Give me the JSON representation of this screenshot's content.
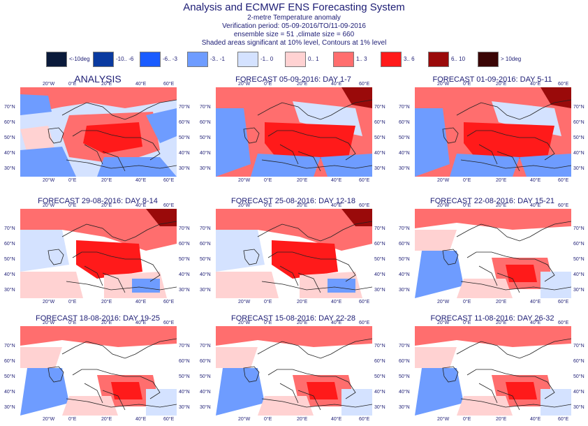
{
  "header": {
    "title": "Analysis and ECMWF ENS Forecasting System",
    "subtitle": "2-metre Temperature anomaly",
    "verification": "Verification period: 05-09-2016/TO/11-09-2016",
    "ensemble": "ensemble size = 51  ,climate size = 660",
    "significance": "Shaded areas significant at 10% level, Contours at 1% level"
  },
  "legend": [
    {
      "label": "<-10deg",
      "color": "#0a1a3a"
    },
    {
      "label": "-10.. -6",
      "color": "#0a3aa0"
    },
    {
      "label": "-6.. -3",
      "color": "#1a5cff"
    },
    {
      "label": "-3.. -1",
      "color": "#6e9cff"
    },
    {
      "label": "-1.. 0",
      "color": "#d4e2ff"
    },
    {
      "label": "0.. 1",
      "color": "#ffd2d2"
    },
    {
      "label": "1.. 3",
      "color": "#ff6e6e"
    },
    {
      "label": "3.. 6",
      "color": "#ff1a1a"
    },
    {
      "label": "6.. 10",
      "color": "#9a0a0a"
    },
    {
      "label": "> 10deg",
      "color": "#3a0505"
    }
  ],
  "axes": {
    "lon_labels": [
      "20°W",
      "0°E",
      "20°E",
      "40°E",
      "60°E"
    ],
    "lat_labels": [
      "70°N",
      "60°N",
      "50°N",
      "40°N",
      "30°N"
    ]
  },
  "panels": [
    {
      "title": "ANALYSIS",
      "style": "analysis"
    },
    {
      "title": "FORECAST 05-09-2016: DAY 1-7",
      "style": "warm-strong"
    },
    {
      "title": "FORECAST 01-09-2016: DAY 5-11",
      "style": "warm-strong"
    },
    {
      "title": "FORECAST 29-08-2016: DAY 8-14",
      "style": "warm-mid"
    },
    {
      "title": "FORECAST 25-08-2016: DAY 12-18",
      "style": "warm-mid"
    },
    {
      "title": "FORECAST 22-08-2016: DAY 15-21",
      "style": "warm-weak"
    },
    {
      "title": "FORECAST 18-08-2016: DAY 19-25",
      "style": "warm-weak"
    },
    {
      "title": "FORECAST 15-08-2016: DAY 22-28",
      "style": "warm-weak"
    },
    {
      "title": "FORECAST 11-08-2016: DAY 26-32",
      "style": "warm-weak"
    }
  ]
}
